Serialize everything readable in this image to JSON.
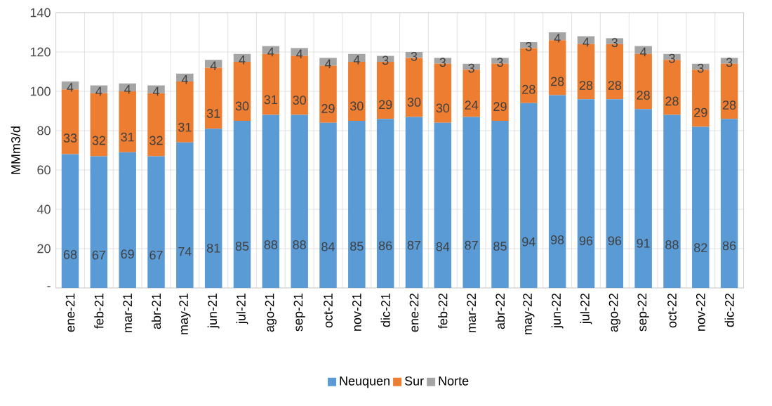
{
  "chart_data": {
    "type": "bar",
    "stacked": true,
    "ylabel": "MMm3/d",
    "categories": [
      "ene-21",
      "feb-21",
      "mar-21",
      "abr-21",
      "may-21",
      "jun-21",
      "jul-21",
      "ago-21",
      "sep-21",
      "oct-21",
      "nov-21",
      "dic-21",
      "ene-22",
      "feb-22",
      "mar-22",
      "abr-22",
      "may-22",
      "jun-22",
      "jul-22",
      "ago-22",
      "sep-22",
      "oct-22",
      "nov-22",
      "dic-22"
    ],
    "series": [
      {
        "name": "Neuquen",
        "color": "#5b9bd5",
        "values": [
          68,
          67,
          69,
          67,
          74,
          81,
          85,
          88,
          88,
          84,
          85,
          86,
          87,
          84,
          87,
          85,
          94,
          98,
          96,
          96,
          91,
          88,
          82,
          86
        ]
      },
      {
        "name": "Sur",
        "color": "#ed7d31",
        "values": [
          33,
          32,
          31,
          32,
          31,
          31,
          30,
          31,
          30,
          29,
          30,
          29,
          30,
          30,
          24,
          29,
          28,
          28,
          28,
          28,
          28,
          28,
          29,
          28
        ]
      },
      {
        "name": "Norte",
        "color": "#a5a5a5",
        "values": [
          4,
          4,
          4,
          4,
          4,
          4,
          4,
          4,
          4,
          4,
          4,
          3,
          3,
          3,
          3,
          3,
          3,
          4,
          4,
          3,
          4,
          3,
          3,
          3
        ]
      }
    ],
    "ylim": [
      0,
      140
    ],
    "yticks": [
      {
        "value": 0,
        "label": "-"
      },
      20,
      40,
      60,
      80,
      100,
      120,
      140
    ],
    "grid": true,
    "legend": "bottom",
    "data_labels": true
  }
}
